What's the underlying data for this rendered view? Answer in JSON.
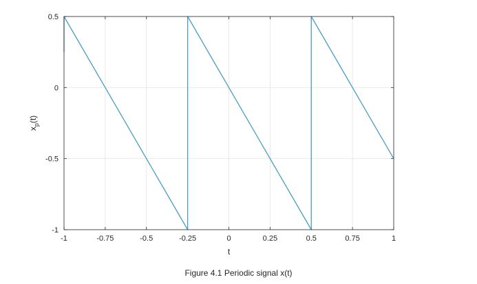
{
  "chart_data": {
    "type": "line",
    "xlabel": "t",
    "ylabel": "x",
    "ylabel_subscript": "p",
    "ylabel_suffix": "(t)",
    "xlim": [
      -1,
      1
    ],
    "ylim": [
      -1,
      0.5
    ],
    "xticks": [
      -1,
      -0.75,
      -0.5,
      -0.25,
      0,
      0.25,
      0.5,
      0.75,
      1
    ],
    "xtick_labels": [
      "-1",
      "-0.75",
      "-0.5",
      "-0.25",
      "0",
      "0.25",
      "0.5",
      "0.75",
      "1"
    ],
    "yticks": [
      -1,
      -0.5,
      0,
      0.5
    ],
    "ytick_labels": [
      "-1",
      "-0.5",
      "0",
      "0.5"
    ],
    "grid": true,
    "line_color": "#4a9cc7",
    "series": [
      {
        "x": [
          -1,
          -1,
          -0.25,
          -0.25,
          0.5,
          0.5,
          1
        ],
        "y": [
          0.25,
          0.5,
          -1,
          0.5,
          -1,
          0.5,
          -0.5
        ]
      }
    ]
  },
  "caption": "Figure 4.1 Periodic signal x(t)"
}
